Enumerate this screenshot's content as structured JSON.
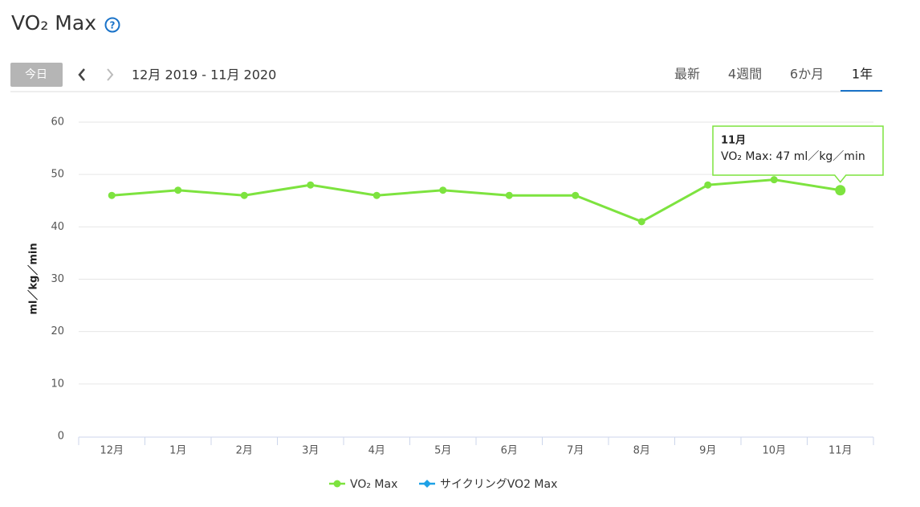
{
  "header": {
    "title": "VO₂ Max",
    "help_icon": "?"
  },
  "toolbar": {
    "today": "今日",
    "range": "12月 2019 - 11月 2020",
    "tabs": [
      "最新",
      "4週間",
      "6か月",
      "1年"
    ],
    "active_tab": 3
  },
  "chart_data": {
    "type": "line",
    "y_label": "ml／kg／min",
    "categories": [
      "12月",
      "1月",
      "2月",
      "3月",
      "4月",
      "5月",
      "6月",
      "7月",
      "8月",
      "9月",
      "10月",
      "11月"
    ],
    "series": [
      {
        "name": "VO₂ Max",
        "color": "#7de33f",
        "values": [
          46,
          47,
          46,
          48,
          46,
          47,
          46,
          46,
          41,
          48,
          49,
          47
        ]
      },
      {
        "name": "サイクリングVO2 Max",
        "color": "#1ea1e6",
        "values": [
          null,
          null,
          null,
          null,
          null,
          null,
          null,
          null,
          null,
          null,
          null,
          null
        ]
      }
    ],
    "ylim": [
      0,
      60
    ],
    "yticks": [
      0,
      10,
      20,
      30,
      40,
      50,
      60
    ],
    "grid": true,
    "tooltip": {
      "index": 11,
      "title": "11月",
      "text": "VO₂ Max: 47 ml／kg／min"
    }
  }
}
